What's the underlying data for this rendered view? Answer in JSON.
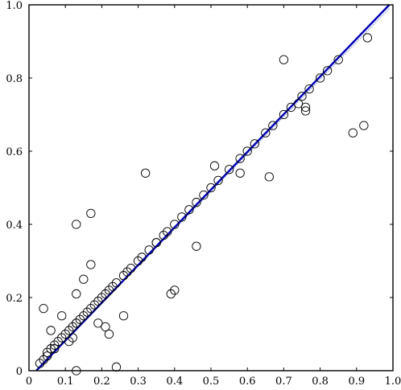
{
  "chart_data": {
    "type": "scatter",
    "title": "",
    "xlabel": "",
    "ylabel": "",
    "xlim": [
      0,
      1.0
    ],
    "ylim": [
      0,
      1.0
    ],
    "grid": false,
    "x_ticks": [
      "0",
      "0.1",
      "0.2",
      "0.3",
      "0.4",
      "0.5",
      "0.6",
      "0.7",
      "0.8",
      "0.9",
      "1.0"
    ],
    "y_ticks": [
      "0",
      "0.2",
      "0.4",
      "0.6",
      "0.8",
      "1.0"
    ],
    "colors": {
      "fit_line": "#0000b4",
      "reference_line": "#6f7fd8",
      "points": "#000000"
    },
    "fit_line": {
      "x": [
        0.02,
        0.99
      ],
      "y": [
        0.0,
        1.0
      ]
    },
    "reference_line": {
      "x": [
        0.02,
        0.99
      ],
      "y": [
        0.0,
        0.99
      ]
    },
    "series": [
      {
        "x": [
          0.03,
          0.04,
          0.05,
          0.06,
          0.07,
          0.08,
          0.09,
          0.1,
          0.11,
          0.12,
          0.13,
          0.14,
          0.15,
          0.16,
          0.17,
          0.18,
          0.19,
          0.2,
          0.21,
          0.22,
          0.23,
          0.24,
          0.26,
          0.27,
          0.28,
          0.3,
          0.31,
          0.33,
          0.35,
          0.37,
          0.38,
          0.4,
          0.42,
          0.44,
          0.46,
          0.48,
          0.5,
          0.52,
          0.55,
          0.58,
          0.6,
          0.62,
          0.65,
          0.67,
          0.7,
          0.72,
          0.75,
          0.77,
          0.8,
          0.82,
          0.85,
          0.04,
          0.06,
          0.09,
          0.13,
          0.15,
          0.17,
          0.13,
          0.17,
          0.32,
          0.12,
          0.07,
          0.05,
          0.13,
          0.19,
          0.21,
          0.22,
          0.26,
          0.35,
          0.4,
          0.39,
          0.46,
          0.51,
          0.58,
          0.66,
          0.7,
          0.89,
          0.92,
          0.93,
          0.24,
          0.13,
          0.11,
          0.76,
          0.74,
          0.76
        ],
        "y": [
          0.02,
          0.03,
          0.05,
          0.06,
          0.07,
          0.08,
          0.09,
          0.1,
          0.11,
          0.12,
          0.13,
          0.14,
          0.15,
          0.16,
          0.17,
          0.18,
          0.19,
          0.2,
          0.21,
          0.22,
          0.23,
          0.24,
          0.26,
          0.27,
          0.28,
          0.3,
          0.31,
          0.33,
          0.35,
          0.37,
          0.38,
          0.4,
          0.42,
          0.44,
          0.46,
          0.48,
          0.5,
          0.52,
          0.55,
          0.58,
          0.6,
          0.62,
          0.65,
          0.67,
          0.7,
          0.72,
          0.75,
          0.77,
          0.8,
          0.82,
          0.85,
          0.17,
          0.11,
          0.15,
          0.21,
          0.25,
          0.29,
          0.4,
          0.43,
          0.54,
          0.09,
          0.06,
          0.04,
          0.13,
          0.13,
          0.12,
          0.1,
          0.15,
          0.35,
          0.22,
          0.21,
          0.34,
          0.56,
          0.54,
          0.53,
          0.85,
          0.65,
          0.67,
          0.91,
          0.01,
          0.0,
          0.08,
          0.71,
          0.73,
          0.72
        ]
      }
    ]
  }
}
